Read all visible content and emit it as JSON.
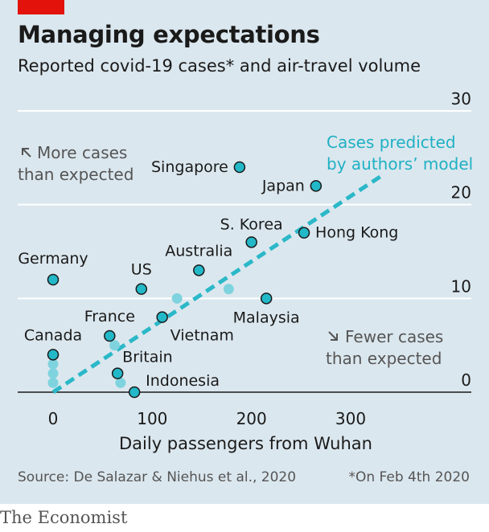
{
  "header": {
    "title": "Managing expectations",
    "subtitle": "Reported covid-19 cases* and air-travel volume"
  },
  "chart_data": {
    "type": "scatter",
    "title": "Managing expectations",
    "subtitle": "Reported covid-19 cases* and air-travel volume",
    "xlabel": "Daily passengers from Wuhan",
    "ylabel": "",
    "xlim": [
      -40,
      340
    ],
    "ylim": [
      0,
      30
    ],
    "xticks": [
      0,
      100,
      200,
      300
    ],
    "yticks": [
      0,
      10,
      20,
      30
    ],
    "grid": "horizontal",
    "points": [
      {
        "name": "Singapore",
        "x": 188,
        "y": 24
      },
      {
        "name": "Japan",
        "x": 265,
        "y": 22
      },
      {
        "name": "Hong Kong",
        "x": 253,
        "y": 17
      },
      {
        "name": "S. Korea",
        "x": 200,
        "y": 16
      },
      {
        "name": "Australia",
        "x": 147,
        "y": 13
      },
      {
        "name": "US",
        "x": 89,
        "y": 11
      },
      {
        "name": "Germany",
        "x": 0,
        "y": 12
      },
      {
        "name": "Malaysia",
        "x": 215,
        "y": 10
      },
      {
        "name": "Vietnam",
        "x": 110,
        "y": 8
      },
      {
        "name": "France",
        "x": 57,
        "y": 6
      },
      {
        "name": "Canada",
        "x": 0,
        "y": 4
      },
      {
        "name": "Britain",
        "x": 65,
        "y": 2
      },
      {
        "name": "Indonesia",
        "x": 82,
        "y": 0
      }
    ],
    "unlabelled_points": [
      {
        "x": 0,
        "y": 3
      },
      {
        "x": 0,
        "y": 2
      },
      {
        "x": 0,
        "y": 1
      },
      {
        "x": 125,
        "y": 10
      },
      {
        "x": 177,
        "y": 11
      },
      {
        "x": 62,
        "y": 5
      },
      {
        "x": 68,
        "y": 1
      }
    ],
    "model_line": {
      "label": "Cases predicted by authors' model",
      "x": [
        0,
        330
      ],
      "y": [
        0,
        23
      ]
    },
    "annotations": {
      "upper_left": "↖ More cases than expected",
      "lower_right": "↘ Fewer cases than expected"
    },
    "colors": {
      "labelled_point": "#23b8c8",
      "unlabelled_point": "#7fd3de",
      "model_line": "#2bb8c8",
      "accent": "#e3120b"
    }
  },
  "chart_text": {
    "model_label_line1": "Cases predicted",
    "model_label_line2": "by authors’ model",
    "upper_left_line1": "More cases",
    "upper_left_line2": "than expected",
    "lower_right_line1": "Fewer cases",
    "lower_right_line2": "than expected"
  },
  "footer": {
    "source": "Source: De Salazar & Niehus et al., 2020",
    "footnote": "*On Feb 4th 2020",
    "brand": "The Economist"
  }
}
